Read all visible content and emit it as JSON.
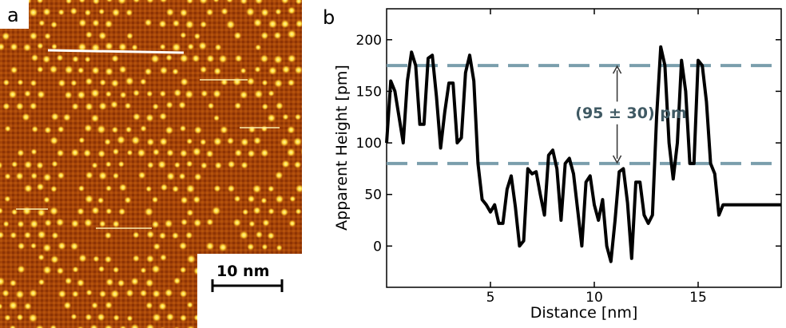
{
  "panel_a": {
    "letter": "a",
    "scale_bar_label": "10 nm",
    "colors": {
      "background": "#9a3a00",
      "dot_core": "#ffe640",
      "dot_halo": "#f0a020",
      "profile_line": "#ffffff"
    }
  },
  "panel_b": {
    "letter": "b",
    "annotation": "(95 ± 30) pm"
  },
  "chart_data": {
    "type": "line",
    "title": "",
    "xlabel": "Distance [nm]",
    "ylabel": "Apparent Height [pm]",
    "xlim": [
      0,
      19
    ],
    "ylim": [
      -40,
      230
    ],
    "xticks": [
      5,
      10,
      15
    ],
    "yticks": [
      0,
      50,
      100,
      150,
      200
    ],
    "grid": false,
    "reference_lines": [
      {
        "y": 175,
        "style": "dashed",
        "color": "#7a9eac"
      },
      {
        "y": 80,
        "style": "dashed",
        "color": "#7a9eac"
      }
    ],
    "arrow": {
      "x": 11.1,
      "y_top": 175,
      "y_bottom": 80
    },
    "series": [
      {
        "color": "#000000",
        "x": [
          0.0,
          0.2,
          0.4,
          0.6,
          0.8,
          1.0,
          1.2,
          1.4,
          1.6,
          1.8,
          2.0,
          2.2,
          2.4,
          2.6,
          2.8,
          3.0,
          3.2,
          3.4,
          3.6,
          3.8,
          4.0,
          4.2,
          4.4,
          4.6,
          4.8,
          5.0,
          5.2,
          5.4,
          5.6,
          5.8,
          6.0,
          6.2,
          6.4,
          6.6,
          6.8,
          7.0,
          7.2,
          7.4,
          7.6,
          7.8,
          8.0,
          8.2,
          8.4,
          8.6,
          8.8,
          9.0,
          9.2,
          9.4,
          9.6,
          9.8,
          10.0,
          10.2,
          10.4,
          10.6,
          10.8,
          11.0,
          11.2,
          11.4,
          11.6,
          11.8,
          12.0,
          12.2,
          12.4,
          12.6,
          12.8,
          13.0,
          13.2,
          13.4,
          13.6,
          13.8,
          14.0,
          14.2,
          14.4,
          14.6,
          14.8,
          15.0,
          15.2,
          15.4,
          15.6,
          15.8,
          16.0,
          16.2,
          16.4,
          16.6,
          16.8,
          17.0,
          17.2,
          17.4,
          17.6,
          17.8,
          18.0,
          18.2,
          18.4,
          18.6,
          18.8,
          19.0
        ],
        "y": [
          100,
          160,
          150,
          125,
          100,
          160,
          188,
          175,
          118,
          118,
          182,
          185,
          145,
          95,
          130,
          158,
          158,
          100,
          105,
          168,
          185,
          160,
          80,
          45,
          40,
          33,
          40,
          22,
          22,
          55,
          68,
          38,
          0,
          5,
          75,
          70,
          72,
          50,
          30,
          88,
          93,
          75,
          25,
          80,
          85,
          70,
          35,
          0,
          62,
          68,
          40,
          25,
          45,
          0,
          -15,
          25,
          72,
          75,
          42,
          -12,
          62,
          62,
          30,
          22,
          30,
          125,
          193,
          175,
          100,
          65,
          100,
          180,
          150,
          80,
          80,
          180,
          175,
          140,
          80,
          70,
          30,
          40,
          40,
          40,
          40,
          40,
          40,
          40,
          40,
          40,
          40,
          40,
          40,
          40,
          40,
          40
        ]
      }
    ]
  }
}
